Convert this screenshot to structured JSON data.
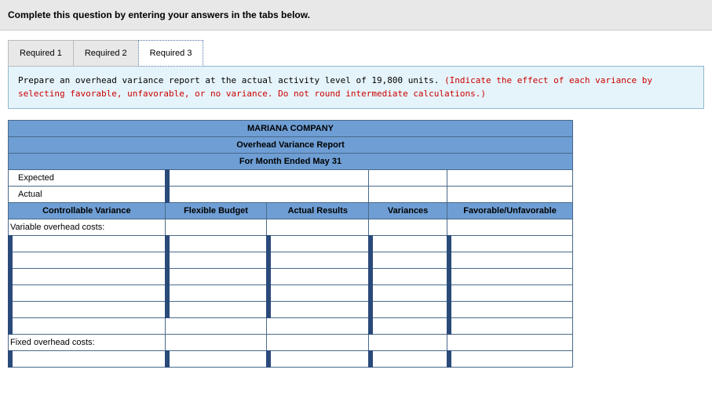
{
  "header": {
    "instruction_title": "Complete this question by entering your answers in the tabs below."
  },
  "tabs": [
    {
      "label": "Required 1",
      "active": false
    },
    {
      "label": "Required 2",
      "active": false
    },
    {
      "label": "Required 3",
      "active": true
    }
  ],
  "instruction": {
    "black": "Prepare an overhead variance report at the actual activity level of 19,800 units. ",
    "red": "(Indicate the effect of each variance by selecting favorable, unfavorable, or no variance. Do not round intermediate calculations.)"
  },
  "sheet": {
    "title1": "MARIANA COMPANY",
    "title2": "Overhead Variance Report",
    "title3": "For Month Ended May 31",
    "rows_top": [
      {
        "label": "Expected"
      },
      {
        "label": "Actual"
      }
    ],
    "section_header": {
      "label": "Controllable Variance",
      "c1": "Flexible Budget",
      "c2": "Actual Results",
      "c3": "Variances",
      "c4": "Favorable/Unfavorable"
    },
    "variable_label": "Variable overhead costs:",
    "variable_rows": 6,
    "fixed_label": "Fixed overhead costs:",
    "fixed_rows": 1
  }
}
